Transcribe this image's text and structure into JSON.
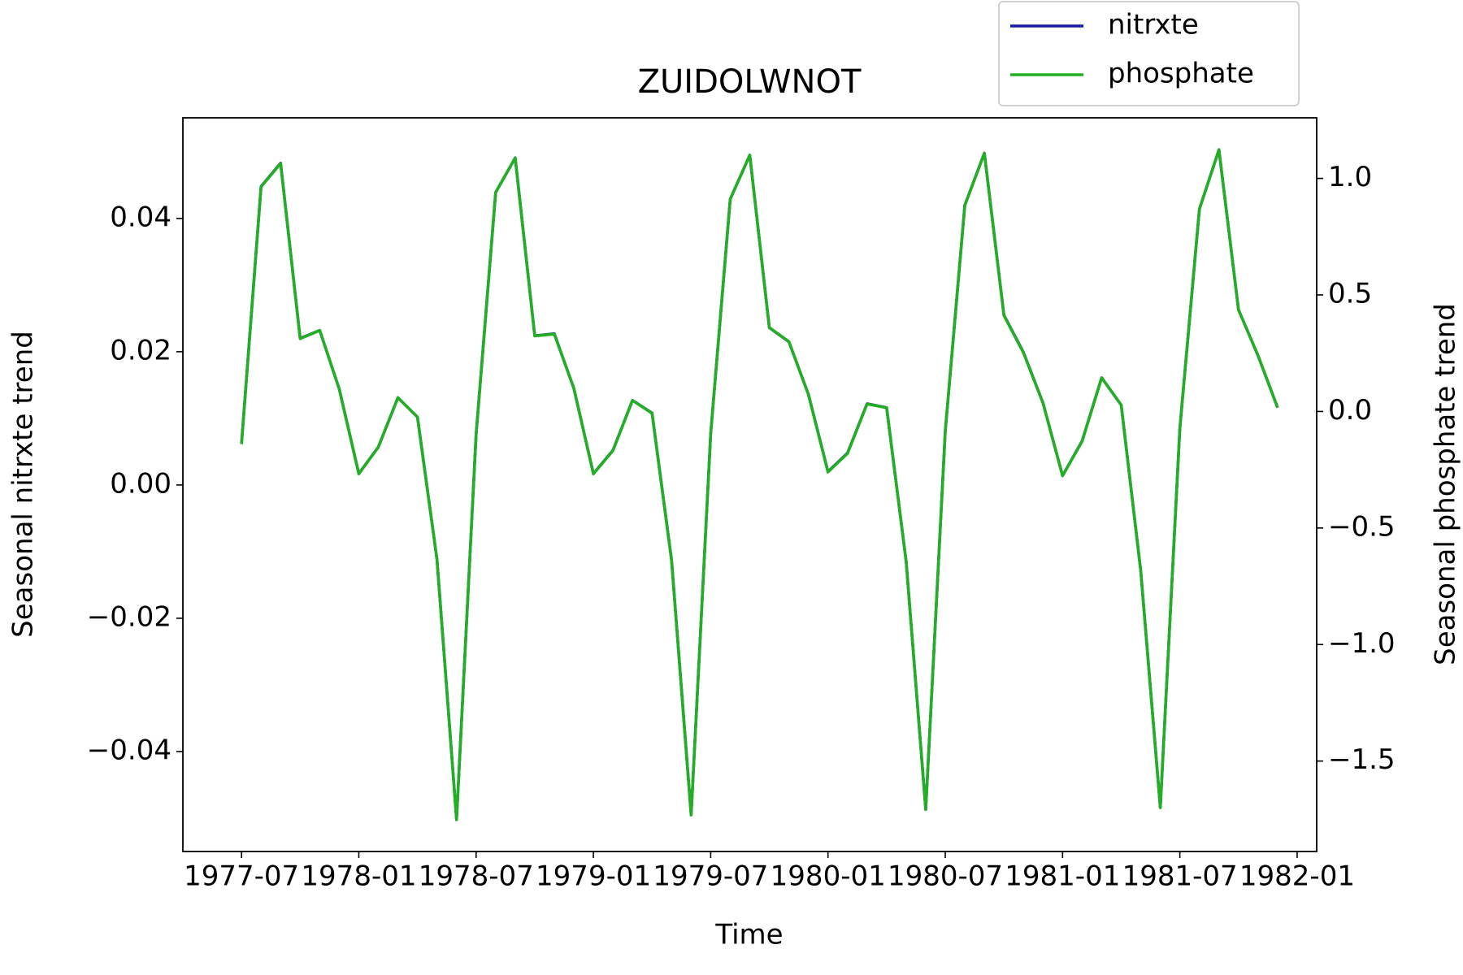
{
  "chart_data": {
    "type": "line",
    "title": "ZUIDOLWNOT",
    "xlabel": "Time",
    "ylabel": "Seasonal nitrxte trend",
    "y2label": "Seasonal phosphate trend",
    "x": [
      "1977-07",
      "1977-08",
      "1977-09",
      "1977-10",
      "1977-11",
      "1977-12",
      "1978-01",
      "1978-02",
      "1978-03",
      "1978-04",
      "1978-05",
      "1978-06",
      "1978-07",
      "1978-08",
      "1978-09",
      "1978-10",
      "1978-11",
      "1978-12",
      "1979-01",
      "1979-02",
      "1979-03",
      "1979-04",
      "1979-05",
      "1979-06",
      "1979-07",
      "1979-08",
      "1979-09",
      "1979-10",
      "1979-11",
      "1979-12",
      "1980-01",
      "1980-02",
      "1980-03",
      "1980-04",
      "1980-05",
      "1980-06",
      "1980-07",
      "1980-08",
      "1980-09",
      "1980-10",
      "1980-11",
      "1980-12",
      "1981-01",
      "1981-02",
      "1981-03",
      "1981-04",
      "1981-05",
      "1981-06",
      "1981-07",
      "1981-08",
      "1981-09",
      "1981-10",
      "1981-11",
      "1981-12"
    ],
    "series": [
      {
        "name": "nitrxte",
        "color": "#1a1aa6",
        "values": [
          0.0062,
          0.0448,
          0.0483,
          0.022,
          0.0232,
          0.0144,
          0.0017,
          0.0057,
          0.0131,
          0.0102,
          -0.0112,
          -0.0502,
          0.0076,
          0.0439,
          0.0491,
          0.0224,
          0.0227,
          0.0145,
          0.0017,
          0.0052,
          0.0127,
          0.0108,
          -0.0113,
          -0.0495,
          0.0077,
          0.0429,
          0.0495,
          0.0236,
          0.0215,
          0.0136,
          0.002,
          0.0048,
          0.0122,
          0.0116,
          -0.0115,
          -0.0487,
          0.0081,
          0.042,
          0.0498,
          0.0255,
          0.0199,
          0.0123,
          0.0014,
          0.0066,
          0.0161,
          0.012,
          -0.0129,
          -0.0484,
          0.0085,
          0.0414,
          0.0503,
          0.0263,
          0.0194,
          0.0116
        ]
      },
      {
        "name": "phosphate",
        "color": "#22b022",
        "axis": "y2",
        "values": [
          -0.14,
          0.964,
          1.064,
          0.312,
          0.348,
          0.096,
          -0.268,
          -0.152,
          0.06,
          -0.024,
          -0.636,
          -1.752,
          -0.1,
          0.94,
          1.088,
          0.324,
          0.332,
          0.1,
          -0.268,
          -0.168,
          0.048,
          -0.008,
          -0.64,
          -1.732,
          -0.096,
          0.912,
          1.1,
          0.36,
          0.3,
          0.072,
          -0.26,
          -0.18,
          0.032,
          0.016,
          -0.644,
          -1.708,
          -0.084,
          0.884,
          1.108,
          0.412,
          0.252,
          0.036,
          -0.276,
          -0.128,
          0.144,
          0.028,
          -0.684,
          -1.7,
          -0.072,
          0.868,
          1.124,
          0.436,
          0.24,
          0.016
        ]
      }
    ],
    "xlim": [
      "1977-04",
      "1982-02"
    ],
    "xticks": [
      "1977-07",
      "1978-01",
      "1978-07",
      "1979-01",
      "1979-07",
      "1980-01",
      "1980-07",
      "1981-01",
      "1981-07",
      "1982-01"
    ],
    "ylim": [
      -0.055,
      0.0551
    ],
    "yticks": [
      {
        "value": -0.04,
        "label": "−0.04"
      },
      {
        "value": -0.02,
        "label": "−0.02"
      },
      {
        "value": 0,
        "label": "0.00"
      },
      0.02,
      0.04
    ],
    "y2lim": [
      -1.888,
      1.26
    ],
    "y2ticks": [
      {
        "value": -1.5,
        "label": "−1.5"
      },
      {
        "value": -1,
        "label": "−1.0"
      },
      {
        "value": -0.5,
        "label": "−0.5"
      },
      {
        "value": 0,
        "label": "0.0"
      },
      0.5,
      {
        "value": 1,
        "label": "1.0"
      }
    ],
    "legend": "upper right",
    "grid": false
  }
}
